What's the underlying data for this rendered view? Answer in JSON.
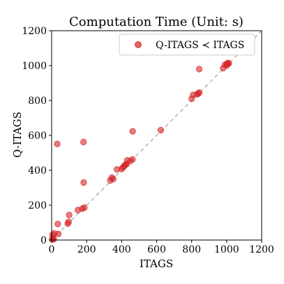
{
  "chart_data": {
    "type": "scatter",
    "title": "Computation Time (Unit: s)",
    "xlabel": "ITAGS",
    "ylabel": "Q-ITAGS",
    "xlim": [
      0,
      1200
    ],
    "ylim": [
      0,
      1200
    ],
    "xticks": [
      "0",
      "200",
      "400",
      "600",
      "800",
      "1000",
      "1200"
    ],
    "yticks": [
      "0",
      "200",
      "400",
      "600",
      "800",
      "1000",
      "1200"
    ],
    "grid": false,
    "legend": "top-right",
    "reference_line": "y = x",
    "series": [
      {
        "name": "Q-ITAGS ≺ ITAGS",
        "color": "#d62728",
        "points": [
          [
            3,
            3
          ],
          [
            8,
            12
          ],
          [
            12,
            5
          ],
          [
            5,
            30
          ],
          [
            15,
            38
          ],
          [
            38,
            35
          ],
          [
            35,
            92
          ],
          [
            32,
            551
          ],
          [
            92,
            94
          ],
          [
            97,
            104
          ],
          [
            100,
            144
          ],
          [
            150,
            172
          ],
          [
            175,
            180
          ],
          [
            187,
            186
          ],
          [
            182,
            562
          ],
          [
            183,
            330
          ],
          [
            335,
            342
          ],
          [
            344,
            358
          ],
          [
            352,
            350
          ],
          [
            373,
            405
          ],
          [
            400,
            407
          ],
          [
            408,
            417
          ],
          [
            415,
            425
          ],
          [
            422,
            432
          ],
          [
            428,
            435
          ],
          [
            432,
            457
          ],
          [
            450,
            453
          ],
          [
            462,
            462
          ],
          [
            463,
            623
          ],
          [
            624,
            630
          ],
          [
            800,
            810
          ],
          [
            808,
            832
          ],
          [
            830,
            835
          ],
          [
            838,
            840
          ],
          [
            843,
            845
          ],
          [
            843,
            980
          ],
          [
            980,
            985
          ],
          [
            990,
            1005
          ],
          [
            1002,
            1010
          ],
          [
            1008,
            1015
          ],
          [
            1012,
            1012
          ],
          [
            1000,
            1000
          ]
        ]
      }
    ]
  }
}
